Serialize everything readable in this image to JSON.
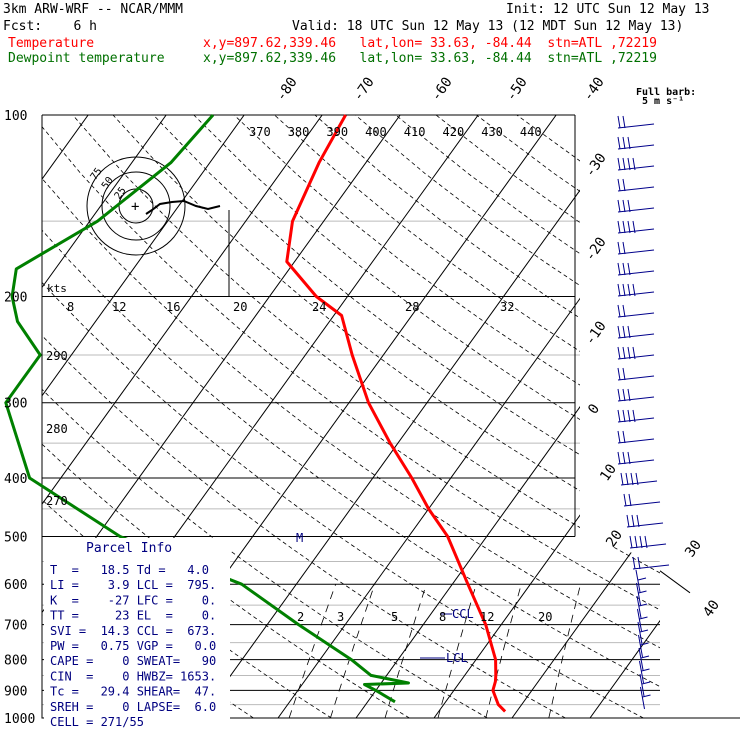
{
  "header": {
    "model": "3km ARW-WRF -- NCAR/MMM",
    "init": "Init: 12 UTC Sun 12 May 13",
    "fcst": "Fcst:    6 h",
    "valid": "Valid: 18 UTC Sun 12 May 13 (12 MDT Sun 12 May 13)",
    "temp_label": "Temperature",
    "dew_label": "Dewpoint temperature",
    "loc_line": "x,y=897.62,339.46   lat,lon= 33.63, -84.44  stn=ATL ,72219"
  },
  "barb_legend": {
    "line1": "Full barb:",
    "line2": "5 m s⁻¹"
  },
  "hodograph": {
    "rings": [
      "75",
      "50",
      "25"
    ],
    "plus": "+"
  },
  "parcel": {
    "title": "Parcel Info",
    "rows": [
      "T  =   18.5 Td =   4.0",
      "LI =    3.9 LCL =  795.",
      "K  =    -27 LFC =    0.",
      "TT =     23 EL  =    0.",
      "SVI =  14.3 CCL =  673.",
      "PW =   0.75 VGP =   0.0",
      "CAPE =    0 SWEAT=   90",
      "CIN  =    0 HWBZ= 1653.",
      "Tc =   29.4 SHEAR=  47.",
      "SREH =    0 LAPSE=  6.0",
      "CELL = 271/55"
    ]
  },
  "markers": {
    "ccl": "CCL",
    "lcl": "LCL",
    "m": "M"
  },
  "colors": {
    "temperature": "#ff0000",
    "dewpoint": "#008000",
    "barbs": "#00008b",
    "text_blue": "#000080"
  },
  "chart_data": {
    "type": "skew-t",
    "pressure_axis": {
      "levels": [
        100,
        200,
        300,
        400,
        500,
        600,
        700,
        800,
        900,
        1000
      ],
      "scale": "log"
    },
    "isotherm_labels": [
      "-80",
      "-70",
      "-60",
      "-50",
      "-40",
      "-30",
      "-20",
      "-10",
      "0",
      "10",
      "20",
      "30",
      "40"
    ],
    "theta_labels": [
      "370",
      "380",
      "390",
      "400",
      "410",
      "420",
      "430",
      "440"
    ],
    "theta_left_labels": [
      "290",
      "280",
      "270"
    ],
    "mixing_ratio_labels": [
      "2",
      "3",
      "5",
      "8",
      "12",
      "20"
    ],
    "hodo_speed_axis": {
      "unit": "kts",
      "ticks": [
        "8",
        "12",
        "16",
        "20",
        "24",
        "28",
        "32"
      ]
    },
    "series": [
      {
        "name": "Temperature",
        "p": [
          100,
          120,
          150,
          175,
          200,
          215,
          250,
          300,
          350,
          400,
          450,
          500,
          600,
          700,
          800,
          850,
          870,
          900,
          950,
          975
        ],
        "t": [
          -57,
          -56,
          -54,
          -51,
          -44,
          -39,
          -34,
          -27.5,
          -21,
          -15,
          -10,
          -5,
          2,
          8,
          12.5,
          14,
          14.5,
          15,
          17,
          18.5
        ]
      },
      {
        "name": "Dewpoint temperature",
        "p": [
          100,
          120,
          150,
          180,
          200,
          220,
          250,
          280,
          300,
          400,
          500,
          600,
          700,
          800,
          850,
          875,
          880,
          900,
          940
        ],
        "t": [
          -74,
          -75,
          -79,
          -85,
          -83,
          -80,
          -74,
          -74,
          -74,
          -64,
          -47,
          -27,
          -16,
          -6,
          -2,
          3.5,
          -2,
          0,
          3.5
        ]
      }
    ]
  }
}
